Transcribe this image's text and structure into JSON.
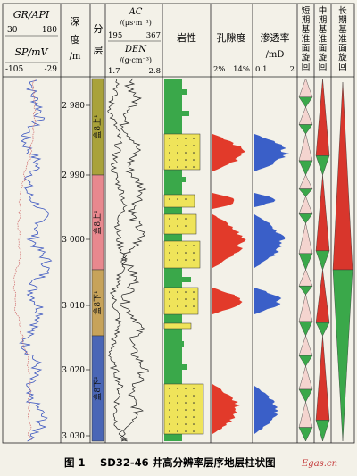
{
  "caption": {
    "fig_number": "图 1",
    "text": "SD32-46 井高分辨率层序地层柱状图",
    "watermark": "Egas.cn"
  },
  "header": {
    "gr_label": "GR/API",
    "gr_min": "30",
    "gr_max": "180",
    "sp_label": "SP/mV",
    "sp_min": "-105",
    "sp_max": "-29",
    "depth_label": [
      "深",
      "度",
      "/m"
    ],
    "layer_label": [
      "分",
      "层"
    ],
    "ac_label": "AC",
    "ac_unit": "/(μs·m⁻¹)",
    "ac_min": "195",
    "ac_max": "367",
    "den_label": "DEN",
    "den_unit": "/(g·cm⁻³)",
    "den_min": "1.7",
    "den_max": "2.8",
    "lithology_label": "岩性",
    "porosity_label": "孔隙度",
    "porosity_min": "2%",
    "porosity_max": "14%",
    "perm_label": "渗透率",
    "perm_unit": "/mD",
    "perm_min": "0.1",
    "perm_max": "2",
    "short_cycle": "短期基准面旋回",
    "mid_cycle": "中期基准面旋回",
    "long_cycle": "长期基准面旋回"
  },
  "depth_ticks": [
    "2 980",
    "2 990",
    "3 000",
    "3 010",
    "3 020",
    "3 030"
  ],
  "layers": [
    {
      "name": "盒8上¹",
      "color": "#a9a23a"
    },
    {
      "name": "盒8上²",
      "color": "#e8888e"
    },
    {
      "name": "盒8下¹",
      "color": "#c7a35a"
    },
    {
      "name": "盒8下²",
      "color": "#4a66b6"
    }
  ],
  "colors": {
    "sand": "#efe45a",
    "mud": "#3aa84a",
    "porosity": "#e23a2a",
    "perm": "#3a5fc8",
    "gr_curve": "#3a55c0",
    "sp_curve": "#d06a6a",
    "cycle_red": "#d8362c",
    "cycle_green": "#3aa84a"
  }
}
